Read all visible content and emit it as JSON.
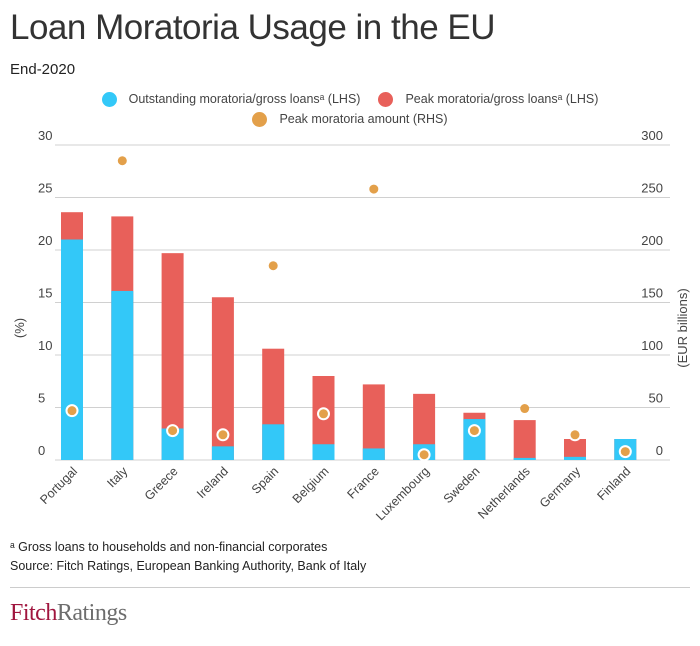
{
  "title": "Loan Moratoria Usage in the EU",
  "subtitle": "End-2020",
  "legend": [
    {
      "label": "Outstanding moratoria/gross loansᵃ (LHS)",
      "color": "#33c8f8"
    },
    {
      "label": "Peak moratoria/gross loansᵃ (LHS)",
      "color": "#e8605a"
    },
    {
      "label": "Peak moratoria amount (RHS)",
      "color": "#e3a04a"
    }
  ],
  "footnote": "ᵃ Gross loans to households and non-financial corporates",
  "source": "Source: Fitch Ratings, European Banking Authority, Bank of Italy",
  "logo": {
    "part1": "Fitch",
    "part2": "Ratings"
  },
  "chart_data": {
    "type": "bar",
    "subtype": "stacked bar with dot overlay (dual axis)",
    "title": "Loan Moratoria Usage in the EU",
    "subtitle": "End-2020",
    "categories": [
      "Portugal",
      "Italy",
      "Greece",
      "Ireland",
      "Spain",
      "Belgium",
      "France",
      "Luxembourg",
      "Sweden",
      "Netherlands",
      "Germany",
      "Finland"
    ],
    "series": [
      {
        "name": "Outstanding moratoria/gross loansᵃ (LHS)",
        "axis": "left",
        "color": "#33c8f8",
        "values": [
          21.0,
          16.1,
          3.0,
          1.3,
          3.4,
          1.5,
          1.1,
          1.5,
          3.9,
          0.2,
          0.3,
          2.0
        ]
      },
      {
        "name": "Peak moratoria/gross loansᵃ (LHS)",
        "axis": "left",
        "color": "#e8605a",
        "values": [
          23.6,
          23.2,
          19.7,
          15.5,
          10.6,
          8.0,
          7.2,
          6.3,
          4.5,
          3.8,
          2.0,
          2.0
        ]
      },
      {
        "name": "Peak moratoria amount (RHS)",
        "axis": "right",
        "color": "#e3a04a",
        "values": [
          47,
          285,
          28,
          24,
          185,
          44,
          258,
          5,
          28,
          49,
          24,
          8
        ]
      }
    ],
    "ylabel_left": "(%)",
    "ylabel_right": "(EUR billions)",
    "ylim_left": [
      0,
      30
    ],
    "ylim_right": [
      0,
      300
    ],
    "yticks_left": [
      "0",
      "5",
      "10",
      "15",
      "20",
      "25",
      "30"
    ],
    "yticks_right": [
      "0",
      "50",
      "100",
      "150",
      "200",
      "250",
      "300"
    ],
    "grid": true,
    "legend_position": "top-center"
  }
}
